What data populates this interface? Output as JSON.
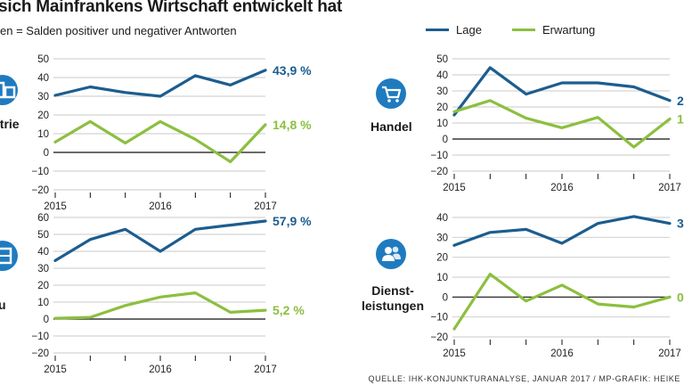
{
  "header": {
    "title": "sich Mainfrankens Wirtschaft entwickelt hat",
    "subtitle": "en = Salden positiver und negativer Antworten"
  },
  "legend": [
    {
      "label": "Lage",
      "color": "#1c5d8f"
    },
    {
      "label": "Erwartung",
      "color": "#8cbf3f"
    }
  ],
  "source": "QUELLE: IHK-KONJUNKTURANALYSE, JANUAR 2017 / MP-GRAFIK: HEIKE",
  "colors": {
    "lage": "#1c5d8f",
    "erwartung": "#8cbf3f",
    "icon": "#1f7bbf"
  },
  "chart_data": [
    {
      "type": "line",
      "category": "strie",
      "icon": "factory-icon",
      "x": [
        0,
        1,
        2,
        3,
        4,
        5,
        6
      ],
      "xticks": [
        "2015",
        "2016",
        "2017"
      ],
      "ylim": [
        -20,
        50
      ],
      "yticks": [
        50,
        40,
        30,
        20,
        10,
        0,
        -10,
        -20
      ],
      "ytick_labels": [
        "50",
        "40",
        "30",
        "20",
        "10",
        "0",
        "−10",
        "−20"
      ],
      "series": [
        {
          "name": "Lage",
          "values": [
            30.5,
            35,
            32,
            30,
            41,
            36,
            43.9
          ],
          "label": "43,9 %"
        },
        {
          "name": "Erwartung",
          "values": [
            5.5,
            16.5,
            5,
            16.5,
            7,
            -5,
            14.8
          ],
          "label": "14,8 %"
        }
      ]
    },
    {
      "type": "line",
      "category": "Handel",
      "icon": "shopping-cart-icon",
      "x": [
        0,
        1,
        2,
        3,
        4,
        5,
        6
      ],
      "xticks": [
        "2015",
        "2016",
        "2017"
      ],
      "ylim": [
        -20,
        50
      ],
      "yticks": [
        50,
        40,
        30,
        20,
        10,
        0,
        -10,
        -20
      ],
      "ytick_labels": [
        "50",
        "40",
        "30",
        "20",
        "10",
        "0",
        "−10",
        "−20"
      ],
      "series": [
        {
          "name": "Lage",
          "values": [
            15,
            44.5,
            28,
            35,
            35,
            32.5,
            24
          ],
          "label": "2"
        },
        {
          "name": "Erwartung",
          "values": [
            17,
            24,
            13,
            7,
            13.5,
            -5,
            12.5
          ],
          "label": "1"
        }
      ]
    },
    {
      "type": "line",
      "category": "u",
      "icon": "building-icon",
      "x": [
        0,
        1,
        2,
        3,
        4,
        5,
        6
      ],
      "xticks": [
        "2015",
        "2016",
        "2017"
      ],
      "ylim": [
        -20,
        60
      ],
      "yticks": [
        60,
        50,
        40,
        30,
        20,
        10,
        0,
        -10,
        -20
      ],
      "ytick_labels": [
        "60",
        "50",
        "40",
        "30",
        "20",
        "10",
        "0",
        "−10",
        "−20"
      ],
      "series": [
        {
          "name": "Lage",
          "values": [
            34.5,
            47,
            53,
            40,
            53,
            55.5,
            57.9
          ],
          "label": "57,9 %"
        },
        {
          "name": "Erwartung",
          "values": [
            0.5,
            1,
            8,
            13,
            15.5,
            4,
            5.2
          ],
          "label": "5,2 %"
        }
      ]
    },
    {
      "type": "line",
      "category": "Dienst-\nleistungen",
      "icon": "people-icon",
      "x": [
        0,
        1,
        2,
        3,
        4,
        5,
        6
      ],
      "xticks": [
        "2015",
        "2016",
        "2017"
      ],
      "ylim": [
        -20,
        40
      ],
      "yticks": [
        40,
        30,
        20,
        10,
        0,
        -10,
        -20
      ],
      "ytick_labels": [
        "40",
        "30",
        "20",
        "10",
        "0",
        "−10",
        "−20"
      ],
      "series": [
        {
          "name": "Lage",
          "values": [
            26,
            32.5,
            34,
            27,
            37,
            40.5,
            37
          ],
          "label": "3"
        },
        {
          "name": "Erwartung",
          "values": [
            -16,
            11.5,
            -2,
            6,
            -3.5,
            -5,
            0
          ],
          "label": "0"
        }
      ]
    }
  ]
}
